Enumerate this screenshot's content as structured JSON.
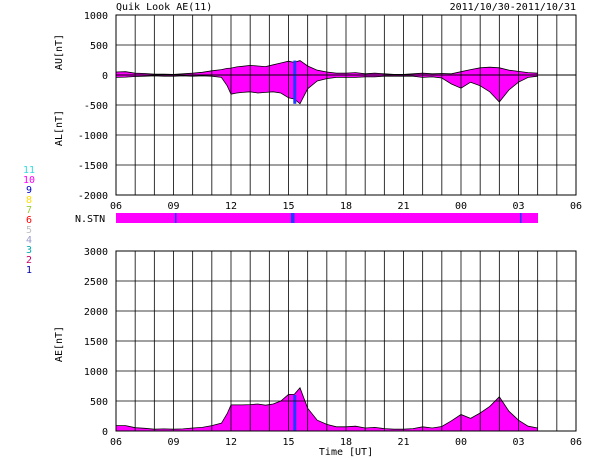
{
  "header": {
    "title": "Quik Look AE(11)",
    "date_range": "2011/10/30-2011/10/31"
  },
  "colors": {
    "fill": "#ff00ff",
    "frame": "#000000",
    "stn_marker": "#1e3cff",
    "stn_bar": "#ff00ff"
  },
  "stations": [
    {
      "num": "11",
      "color": "#33dddd"
    },
    {
      "num": "10",
      "color": "#ff00ff"
    },
    {
      "num": "9",
      "color": "#0000cc"
    },
    {
      "num": "8",
      "color": "#ffdd00"
    },
    {
      "num": "7",
      "color": "#99cc33"
    },
    {
      "num": "6",
      "color": "#ff0000"
    },
    {
      "num": "5",
      "color": "#c0c0c0"
    },
    {
      "num": "4",
      "color": "#9999cc"
    },
    {
      "num": "3",
      "color": "#00aaaa"
    },
    {
      "num": "2",
      "color": "#cc0066"
    },
    {
      "num": "1",
      "color": "#0000aa"
    }
  ],
  "n_stn_label": "N.STN",
  "chart_data": [
    {
      "id": "au_al",
      "type": "area",
      "ylabel_top": "AU[nT]",
      "ylabel_bottom": "AL[nT]",
      "xlim": [
        6,
        30
      ],
      "ylim": [
        -2000,
        1000
      ],
      "x_ticks": [
        "06",
        "09",
        "12",
        "15",
        "18",
        "21",
        "00",
        "03",
        "06"
      ],
      "y_ticks": [
        "1000",
        "500",
        "0",
        "-500",
        "-1000",
        "-1500",
        "-2000"
      ],
      "grid": true,
      "au": {
        "x": [
          6.0,
          6.5,
          7.0,
          7.5,
          8.0,
          8.5,
          9.0,
          9.5,
          10.0,
          10.5,
          11.0,
          11.5,
          11.8,
          12.0,
          12.3,
          12.6,
          13.0,
          13.4,
          13.8,
          14.2,
          14.6,
          15.0,
          15.3,
          15.6,
          16.0,
          16.5,
          17.0,
          17.5,
          18.0,
          18.5,
          19.0,
          19.5,
          20.0,
          20.5,
          21.0,
          21.5,
          22.0,
          22.5,
          23.0,
          23.5,
          24.0,
          24.5,
          25.0,
          25.5,
          26.0,
          26.5,
          27.0,
          27.5,
          28.0
        ],
        "y": [
          50,
          55,
          30,
          25,
          15,
          15,
          10,
          20,
          30,
          45,
          70,
          90,
          110,
          115,
          135,
          145,
          160,
          150,
          140,
          170,
          200,
          230,
          210,
          240,
          150,
          80,
          50,
          30,
          30,
          40,
          20,
          30,
          20,
          10,
          10,
          20,
          30,
          20,
          25,
          20,
          55,
          90,
          120,
          130,
          120,
          80,
          60,
          40,
          30
        ]
      },
      "al": {
        "x": [
          6.0,
          6.5,
          7.0,
          7.5,
          8.0,
          8.5,
          9.0,
          9.5,
          10.0,
          10.5,
          11.0,
          11.5,
          11.8,
          12.0,
          12.3,
          12.6,
          13.0,
          13.4,
          13.8,
          14.2,
          14.6,
          15.0,
          15.3,
          15.6,
          16.0,
          16.5,
          17.0,
          17.5,
          18.0,
          18.5,
          19.0,
          19.5,
          20.0,
          20.5,
          21.0,
          21.5,
          22.0,
          22.5,
          23.0,
          23.5,
          24.0,
          24.5,
          25.0,
          25.5,
          26.0,
          26.5,
          27.0,
          27.5,
          28.0
        ],
        "y": [
          -40,
          -35,
          -25,
          -20,
          -15,
          -20,
          -20,
          -15,
          -20,
          -15,
          -20,
          -40,
          -180,
          -320,
          -300,
          -290,
          -280,
          -300,
          -290,
          -280,
          -300,
          -380,
          -400,
          -480,
          -230,
          -100,
          -60,
          -40,
          -40,
          -40,
          -30,
          -30,
          -20,
          -20,
          -20,
          -20,
          -40,
          -30,
          -50,
          -150,
          -220,
          -120,
          -180,
          -280,
          -450,
          -250,
          -120,
          -40,
          -20
        ]
      }
    },
    {
      "id": "ae",
      "type": "area",
      "ylabel": "AE[nT]",
      "xlabel": "Time [UT]",
      "xlim": [
        6,
        30
      ],
      "ylim": [
        0,
        3000
      ],
      "x_ticks": [
        "06",
        "09",
        "12",
        "15",
        "18",
        "21",
        "00",
        "03",
        "06"
      ],
      "y_ticks": [
        "3000",
        "2500",
        "2000",
        "1500",
        "1000",
        "500",
        "0"
      ],
      "grid": true,
      "x": [
        6.0,
        6.5,
        7.0,
        7.5,
        8.0,
        8.5,
        9.0,
        9.5,
        10.0,
        10.5,
        11.0,
        11.5,
        11.8,
        12.0,
        12.3,
        12.6,
        13.0,
        13.4,
        13.8,
        14.2,
        14.6,
        15.0,
        15.3,
        15.6,
        16.0,
        16.5,
        17.0,
        17.5,
        18.0,
        18.5,
        19.0,
        19.5,
        20.0,
        20.5,
        21.0,
        21.5,
        22.0,
        22.5,
        23.0,
        23.5,
        24.0,
        24.5,
        25.0,
        25.5,
        26.0,
        26.5,
        27.0,
        27.5,
        28.0
      ],
      "y": [
        90,
        90,
        55,
        45,
        30,
        35,
        30,
        35,
        50,
        60,
        90,
        130,
        290,
        435,
        435,
        435,
        440,
        450,
        430,
        450,
        500,
        610,
        610,
        720,
        380,
        180,
        110,
        70,
        70,
        80,
        50,
        60,
        40,
        30,
        30,
        40,
        70,
        50,
        75,
        170,
        275,
        210,
        300,
        410,
        570,
        330,
        180,
        80,
        50
      ]
    }
  ]
}
